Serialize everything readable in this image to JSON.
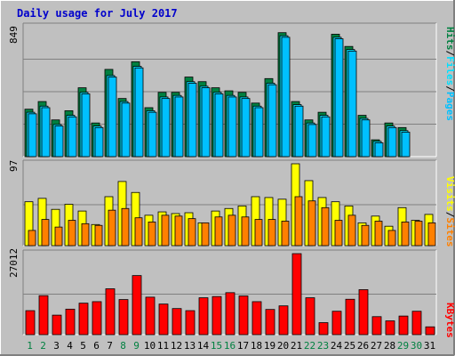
{
  "title": "Daily usage for July 2017",
  "colors": {
    "background": "#c0c0c0",
    "title": "#0000cc",
    "hits": "#008040",
    "files": "#00e0ff",
    "pages": "#00c0ff",
    "visits": "#ffff00",
    "sites": "#ff8000",
    "kbytes": "#ff0000",
    "weekday_label": "#000000",
    "weekend_label": "#008040"
  },
  "chart_data": [
    {
      "type": "bar",
      "name": "hits-files-pages",
      "categories": [
        "1",
        "2",
        "3",
        "4",
        "5",
        "6",
        "7",
        "8",
        "9",
        "10",
        "11",
        "12",
        "13",
        "14",
        "15",
        "16",
        "17",
        "18",
        "19",
        "20",
        "21",
        "22",
        "23",
        "24",
        "25",
        "26",
        "27",
        "28",
        "29",
        "30",
        "31"
      ],
      "ylim": [
        0,
        849
      ],
      "max_label": "849",
      "side_label": [
        "Pages",
        "Files",
        "Hits"
      ],
      "series": [
        {
          "name": "Hits",
          "values": [
            310,
            360,
            240,
            300,
            450,
            220,
            570,
            380,
            620,
            320,
            420,
            420,
            520,
            490,
            450,
            430,
            420,
            350,
            510,
            810,
            360,
            240,
            290,
            800,
            720,
            270,
            110,
            220,
            190,
            0,
            0
          ]
        },
        {
          "name": "Files",
          "values": [
            290,
            330,
            210,
            270,
            420,
            200,
            530,
            360,
            590,
            300,
            390,
            400,
            490,
            460,
            420,
            400,
            390,
            330,
            480,
            790,
            340,
            220,
            270,
            780,
            700,
            250,
            100,
            200,
            170,
            0,
            0
          ]
        },
        {
          "name": "Pages",
          "values": [
            280,
            320,
            200,
            260,
            410,
            190,
            520,
            350,
            580,
            290,
            380,
            390,
            480,
            450,
            410,
            390,
            380,
            320,
            470,
            780,
            330,
            210,
            260,
            770,
            690,
            240,
            90,
            190,
            160,
            0,
            0
          ]
        }
      ]
    },
    {
      "type": "bar",
      "name": "visits-sites",
      "categories": [
        "1",
        "2",
        "3",
        "4",
        "5",
        "6",
        "7",
        "8",
        "9",
        "10",
        "11",
        "12",
        "13",
        "14",
        "15",
        "16",
        "17",
        "18",
        "19",
        "20",
        "21",
        "22",
        "23",
        "24",
        "25",
        "26",
        "27",
        "28",
        "29",
        "30",
        "31"
      ],
      "ylim": [
        0,
        97
      ],
      "max_label": "97",
      "side_label": [
        "Sites",
        "Visits"
      ],
      "series": [
        {
          "name": "Visits",
          "values": [
            52,
            56,
            43,
            49,
            41,
            25,
            58,
            76,
            63,
            36,
            40,
            38,
            39,
            27,
            41,
            44,
            47,
            58,
            57,
            55,
            97,
            77,
            57,
            52,
            47,
            27,
            35,
            23,
            45,
            30,
            37
          ]
        },
        {
          "name": "Sites",
          "values": [
            18,
            31,
            22,
            30,
            26,
            24,
            42,
            44,
            33,
            28,
            36,
            35,
            32,
            27,
            34,
            36,
            34,
            31,
            31,
            29,
            58,
            53,
            45,
            30,
            36,
            24,
            29,
            18,
            28,
            29,
            27
          ]
        }
      ]
    },
    {
      "type": "bar",
      "name": "kbytes",
      "categories": [
        "1",
        "2",
        "3",
        "4",
        "5",
        "6",
        "7",
        "8",
        "9",
        "10",
        "11",
        "12",
        "13",
        "14",
        "15",
        "16",
        "17",
        "18",
        "19",
        "20",
        "21",
        "22",
        "23",
        "24",
        "25",
        "26",
        "27",
        "28",
        "29",
        "30",
        "31"
      ],
      "ylim": [
        0,
        27012
      ],
      "max_label": "27012",
      "side_label": [
        "KBytes"
      ],
      "series": [
        {
          "name": "KBytes",
          "values": [
            8000,
            13000,
            6500,
            8500,
            10500,
            11000,
            15300,
            11700,
            19700,
            12500,
            10200,
            8700,
            8000,
            12300,
            12700,
            14000,
            12900,
            11000,
            8400,
            9600,
            27012,
            12300,
            4000,
            7800,
            11800,
            15000,
            6000,
            4600,
            6200,
            7800,
            2600
          ]
        }
      ]
    }
  ],
  "x_labels": [
    {
      "day": "1",
      "weekend": true
    },
    {
      "day": "2",
      "weekend": true
    },
    {
      "day": "3",
      "weekend": false
    },
    {
      "day": "4",
      "weekend": false
    },
    {
      "day": "5",
      "weekend": false
    },
    {
      "day": "6",
      "weekend": false
    },
    {
      "day": "7",
      "weekend": false
    },
    {
      "day": "8",
      "weekend": true
    },
    {
      "day": "9",
      "weekend": true
    },
    {
      "day": "10",
      "weekend": false
    },
    {
      "day": "11",
      "weekend": false
    },
    {
      "day": "12",
      "weekend": false
    },
    {
      "day": "13",
      "weekend": false
    },
    {
      "day": "14",
      "weekend": false
    },
    {
      "day": "15",
      "weekend": true
    },
    {
      "day": "16",
      "weekend": true
    },
    {
      "day": "17",
      "weekend": false
    },
    {
      "day": "18",
      "weekend": false
    },
    {
      "day": "19",
      "weekend": false
    },
    {
      "day": "20",
      "weekend": false
    },
    {
      "day": "21",
      "weekend": false
    },
    {
      "day": "22",
      "weekend": true
    },
    {
      "day": "23",
      "weekend": true
    },
    {
      "day": "24",
      "weekend": false
    },
    {
      "day": "25",
      "weekend": false
    },
    {
      "day": "26",
      "weekend": false
    },
    {
      "day": "27",
      "weekend": false
    },
    {
      "day": "28",
      "weekend": false
    },
    {
      "day": "29",
      "weekend": true
    },
    {
      "day": "30",
      "weekend": true
    },
    {
      "day": "31",
      "weekend": false
    }
  ]
}
